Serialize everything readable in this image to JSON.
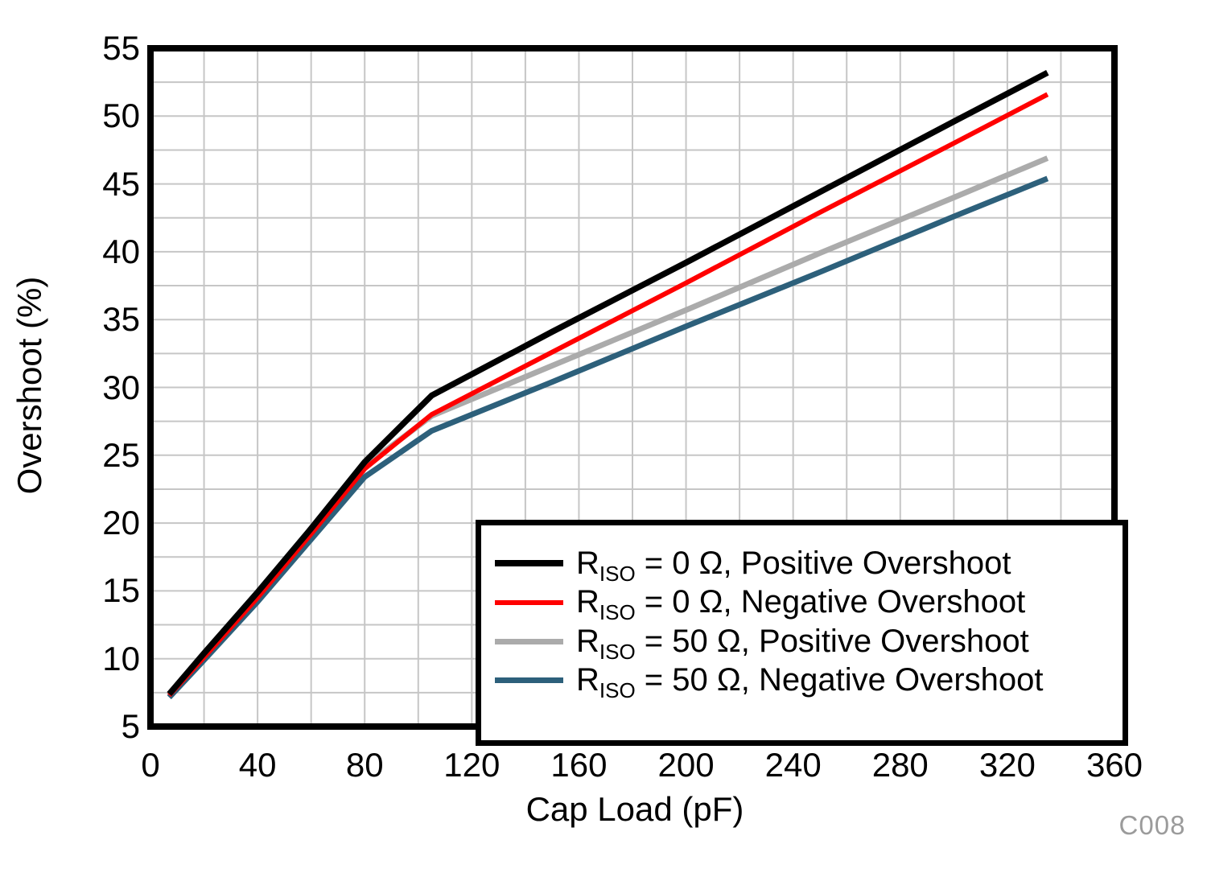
{
  "chart_data": {
    "type": "line",
    "title": "",
    "xlabel": "Cap Load (pF)",
    "ylabel": "Overshoot (%)",
    "watermark": "C008",
    "xlim": [
      0,
      360
    ],
    "ylim": [
      5,
      55
    ],
    "x_ticks": [
      0,
      40,
      80,
      120,
      160,
      200,
      240,
      280,
      320,
      360
    ],
    "y_ticks": [
      5,
      10,
      15,
      20,
      25,
      30,
      35,
      40,
      45,
      50,
      55
    ],
    "x_minor_grid_step": 20,
    "y_minor_grid_step": 2.5,
    "grid": true,
    "grid_color": "#c6c6c6",
    "frame_color": "#000000",
    "legend_position": "inside-bottom-right",
    "draw_order": [
      2,
      3,
      1,
      0
    ],
    "x": [
      7,
      20,
      40,
      60,
      80,
      105,
      150,
      200,
      250,
      300,
      335
    ],
    "series": [
      {
        "label": {
          "prefix": "R",
          "sub": "ISO",
          "rest": " = 0 Ω, Positive Overshoot"
        },
        "color": "#000000",
        "stroke_width": 7.5,
        "values": [
          7.4,
          10.4,
          14.9,
          19.6,
          24.5,
          29.4,
          34.1,
          39.2,
          44.4,
          49.6,
          53.2
        ]
      },
      {
        "label": {
          "prefix": "R",
          "sub": "ISO",
          "rest": " = 0 Ω, Negative Overshoot"
        },
        "color": "#ff0000",
        "stroke_width": 6,
        "values": [
          7.3,
          10.1,
          14.5,
          19.2,
          24.0,
          28.0,
          32.6,
          37.7,
          42.9,
          48.0,
          51.6
        ]
      },
      {
        "label": {
          "prefix": "R",
          "sub": "ISO",
          "rest": " = 50 Ω, Positive Overshoot"
        },
        "color": "#ababab",
        "stroke_width": 7,
        "values": [
          7.25,
          10.2,
          14.7,
          19.4,
          24.2,
          27.9,
          31.6,
          35.7,
          39.9,
          44.0,
          46.9
        ]
      },
      {
        "label": {
          "prefix": "R",
          "sub": "ISO",
          "rest": " = 50 Ω, Negative Overshoot"
        },
        "color": "#2d607b",
        "stroke_width": 7,
        "values": [
          7.15,
          9.9,
          14.2,
          18.8,
          23.4,
          26.8,
          30.4,
          34.5,
          38.5,
          42.6,
          45.4
        ]
      }
    ]
  }
}
